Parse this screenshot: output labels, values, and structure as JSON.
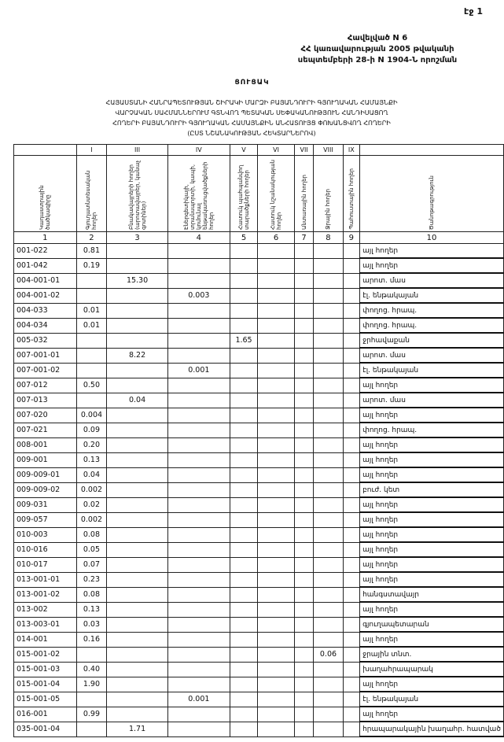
{
  "header": {
    "page": "էջ 1",
    "annex": [
      "Հավելված N 6",
      "ՀՀ կառավարության 2005 թվականի",
      "սեպտեմբերի 28-ի N 1904-Ն որոշման"
    ],
    "list": "ՑՈՒՑԱԿ",
    "title": [
      "ՀԱՅԱՍՏԱՆԻ ՀԱՆՐԱՊԵՏՈՒԹՅԱՆ ՇԻՐԱԿԻ ՄԱՐԶԻ ԲԱՅԱՆԴՈՒՐԻ ԳՅՈՒՂԱԿԱՆ ՀԱՄԱՅՆՔԻ",
      "ՎԱՐՉԱԿԱՆ ՍԱՀՄԱՆՆԵՐՈՒՄ ԳՏՆՎՈՂ ՊԵՏԱԿԱՆ ՍԵՓԱԿԱՆՈՒԹՅՈՒՆ ՀԱՆԴԻՍԱՑՈՂ",
      "ՀՈՂԵՐԻ ԲԱՅԱՆԴՈՒՐԻ ԳՅՈՒՂԱԿԱՆ ՀԱՄԱՅՆՔԻՆ ԱՆՀԱՏՈՒՅՑ ՓՈԽԱՆՑՎՈՂ ՀՈՂԵՐԻ",
      "(ԸՍՏ ՆՇԱՆԱԿՈՒԹՅԱՆ ՀԵԿՏԱՐՆԵՐՈՎ)"
    ]
  },
  "table": {
    "columns": [
      {
        "header": "Կադաստրային ծածկագիրը",
        "number": "1"
      },
      {
        "numeral": "I",
        "header": "Գյուղատնտեսական հողեր",
        "number": "2"
      },
      {
        "numeral": "III",
        "header": "Բնակավայրերի հողեր (արոտավայրեր, կանաչ գոտիներ)",
        "number": "3"
      },
      {
        "numeral": "IV",
        "header": "Էներգետիկայի, տրանսպորտի, կապի, կոմունալ ենթակառուցվածքների հողեր",
        "number": "4"
      },
      {
        "numeral": "V",
        "header": "Հատուկ պահպանվող տարածքների հողեր",
        "number": "5"
      },
      {
        "numeral": "VI",
        "header": "Հատուկ նշանակության հողեր",
        "number": "6"
      },
      {
        "numeral": "VII",
        "header": "Անտառային հողեր",
        "number": "7"
      },
      {
        "numeral": "VIII",
        "header": "Ջրային հողեր",
        "number": "8"
      },
      {
        "numeral": "IX",
        "header": "Պահուստային հողեր",
        "number": "9"
      },
      {
        "header": "Ծանոթագրություն",
        "number": "10"
      }
    ],
    "rows": [
      {
        "code": "001-022",
        "c2": "0.81",
        "note": "այլ հողեր"
      },
      {
        "code": "001-042",
        "c2": "0.19",
        "note": "այլ հողեր"
      },
      {
        "code": "004-001-01",
        "c3": "15.30",
        "note": "արոտ. մաս"
      },
      {
        "code": "004-001-02",
        "c4": "0.003",
        "note": "էլ. ենթակայան"
      },
      {
        "code": "004-033",
        "c2": "0.01",
        "note": "փողոց. հրապ."
      },
      {
        "code": "004-034",
        "c2": "0.01",
        "note": "փողոց. հրապ."
      },
      {
        "code": "005-032",
        "c5": "1.65",
        "note": "ջրհավաքան"
      },
      {
        "code": "007-001-01",
        "c3": "8.22",
        "note": "արոտ. մաս"
      },
      {
        "code": "007-001-02",
        "c4": "0.001",
        "note": "էլ. ենթակայան"
      },
      {
        "code": "007-012",
        "c2": "0.50",
        "note": "այլ հողեր"
      },
      {
        "code": "007-013",
        "c3": "0.04",
        "note": "արոտ. մաս"
      },
      {
        "code": "007-020",
        "c2": "0.004",
        "note": "այլ հողեր"
      },
      {
        "code": "007-021",
        "c2": "0.09",
        "note": "փողոց. հրապ."
      },
      {
        "code": "008-001",
        "c2": "0.20",
        "note": "այլ հողեր"
      },
      {
        "code": "009-001",
        "c2": "0.13",
        "note": "այլ հողեր"
      },
      {
        "code": "009-009-01",
        "c2": "0.04",
        "note": "այլ հողեր"
      },
      {
        "code": "009-009-02",
        "c2": "0.002",
        "note": "բուժ. կետ"
      },
      {
        "code": "009-031",
        "c2": "0.02",
        "note": "այլ հողեր"
      },
      {
        "code": "009-057",
        "c2": "0.002",
        "note": "այլ հողեր"
      },
      {
        "code": "010-003",
        "c2": "0.08",
        "note": "այլ հողեր"
      },
      {
        "code": "010-016",
        "c2": "0.05",
        "note": "այլ հողեր"
      },
      {
        "code": "010-017",
        "c2": "0.07",
        "note": "այլ հողեր"
      },
      {
        "code": "013-001-01",
        "c2": "0.23",
        "note": "այլ հողեր"
      },
      {
        "code": "013-001-02",
        "c2": "0.08",
        "note": "հանգստավայր"
      },
      {
        "code": "013-002",
        "c2": "0.13",
        "note": "այլ հողեր"
      },
      {
        "code": "013-003-01",
        "c2": "0.03",
        "note": "գյուղապետարան"
      },
      {
        "code": "014-001",
        "c2": "0.16",
        "note": "այլ հողեր"
      },
      {
        "code": "015-001-02",
        "c8": "0.06",
        "note": "ջրային տնտ."
      },
      {
        "code": "015-001-03",
        "c2": "0.40",
        "note": "խաղահրապարակ"
      },
      {
        "code": "015-001-04",
        "c2": "1.90",
        "note": "այլ հողեր"
      },
      {
        "code": "015-001-05",
        "c4": "0.001",
        "note": "էլ. ենթակայան"
      },
      {
        "code": "016-001",
        "c2": "0.99",
        "note": "այլ հողեր"
      },
      {
        "code": "035-001-04",
        "c3": "1.71",
        "note": "հրապարակային խաղահր. հատված"
      }
    ]
  }
}
